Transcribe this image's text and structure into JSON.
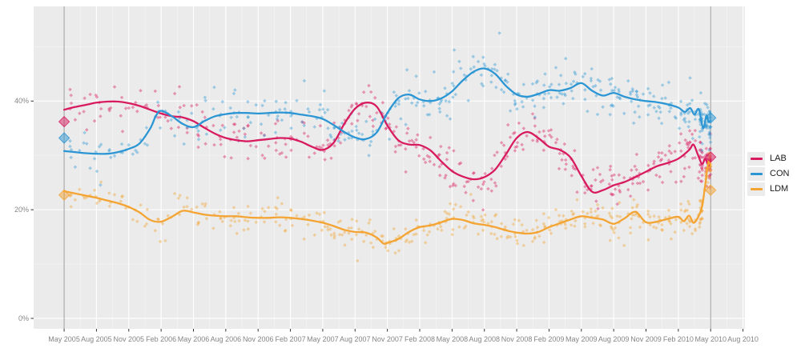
{
  "chart_data": {
    "type": "scatter-line",
    "title": "",
    "description": "UK voting-intention polls May 2005 - May 2010: semi-transparent poll points, smoothed trend lines per party, grey vertical lines and diamond markers at the 2005 and 2010 general elections",
    "x_unit": "months since May 2005",
    "xlim": [
      -2.83,
      63.18
    ],
    "ylim": [
      -1.92,
      57.42
    ],
    "panel_bg": "#ebebeb",
    "grid_major_color": "#ffffff",
    "grid_minor_color": "#ffffff",
    "election_line_color": "#9c9c9c",
    "tick_color": "#333333",
    "x_ticks": [
      {
        "t": 0,
        "label": "May 2005"
      },
      {
        "t": 3,
        "label": "Aug 2005"
      },
      {
        "t": 6,
        "label": "Nov 2005"
      },
      {
        "t": 9,
        "label": "Feb 2006"
      },
      {
        "t": 12,
        "label": "May 2006"
      },
      {
        "t": 15,
        "label": "Aug 2006"
      },
      {
        "t": 18,
        "label": "Nov 2006"
      },
      {
        "t": 21,
        "label": "Feb 2007"
      },
      {
        "t": 24,
        "label": "May 2007"
      },
      {
        "t": 27,
        "label": "Aug 2007"
      },
      {
        "t": 30,
        "label": "Nov 2007"
      },
      {
        "t": 33,
        "label": "Feb 2008"
      },
      {
        "t": 36,
        "label": "May 2008"
      },
      {
        "t": 39,
        "label": "Aug 2008"
      },
      {
        "t": 42,
        "label": "Nov 2008"
      },
      {
        "t": 45,
        "label": "Feb 2009"
      },
      {
        "t": 48,
        "label": "May 2009"
      },
      {
        "t": 51,
        "label": "Aug 2009"
      },
      {
        "t": 54,
        "label": "Nov 2009"
      },
      {
        "t": 57,
        "label": "Feb 2010"
      },
      {
        "t": 60,
        "label": "May 2010"
      },
      {
        "t": 63,
        "label": "Aug 2010"
      }
    ],
    "y_ticks": [
      {
        "v": 0,
        "label": "0%"
      },
      {
        "v": 20,
        "label": "20%"
      },
      {
        "v": 40,
        "label": "40%"
      }
    ],
    "y_minor": [
      10,
      30,
      50
    ],
    "election_lines_t": [
      0,
      60
    ],
    "series": [
      {
        "name": "LAB",
        "color": "#d81b5f",
        "points": [
          [
            0,
            38.4
          ],
          [
            1,
            38.9
          ],
          [
            2,
            39.3
          ],
          [
            3,
            39.7
          ],
          [
            4,
            39.9
          ],
          [
            5,
            39.9
          ],
          [
            6,
            39.6
          ],
          [
            7,
            39.1
          ],
          [
            8,
            38.4
          ],
          [
            9,
            37.7
          ],
          [
            10,
            37.2
          ],
          [
            11,
            37.0
          ],
          [
            12,
            36.3
          ],
          [
            13,
            35.1
          ],
          [
            14,
            34.0
          ],
          [
            15,
            33.2
          ],
          [
            16,
            32.8
          ],
          [
            17,
            32.6
          ],
          [
            18,
            32.8
          ],
          [
            19,
            33.0
          ],
          [
            20,
            33.2
          ],
          [
            21,
            33.1
          ],
          [
            22,
            32.5
          ],
          [
            23,
            31.6
          ],
          [
            24,
            31.0
          ],
          [
            25,
            32.3
          ],
          [
            26,
            35.8
          ],
          [
            27,
            38.6
          ],
          [
            28,
            39.7
          ],
          [
            29,
            39.0
          ],
          [
            30,
            35.5
          ],
          [
            31,
            32.8
          ],
          [
            32,
            32.0
          ],
          [
            33,
            31.9
          ],
          [
            34,
            30.9
          ],
          [
            35,
            28.9
          ],
          [
            36,
            27.1
          ],
          [
            37,
            26.1
          ],
          [
            38,
            25.6
          ],
          [
            39,
            26.0
          ],
          [
            40,
            27.4
          ],
          [
            41,
            30.2
          ],
          [
            42,
            33.2
          ],
          [
            43,
            34.3
          ],
          [
            44,
            33.2
          ],
          [
            45,
            31.6
          ],
          [
            46,
            31.0
          ],
          [
            47,
            29.6
          ],
          [
            48,
            26.2
          ],
          [
            49,
            23.3
          ],
          [
            50,
            23.6
          ],
          [
            51,
            24.5
          ],
          [
            52,
            25.1
          ],
          [
            53,
            26.0
          ],
          [
            54,
            27.0
          ],
          [
            55,
            28.0
          ],
          [
            56,
            28.6
          ],
          [
            57,
            29.4
          ],
          [
            58,
            31.0
          ],
          [
            58.4,
            32.0
          ],
          [
            58.8,
            30.2
          ],
          [
            59.2,
            28.4
          ],
          [
            59.5,
            29.4
          ],
          [
            59.8,
            28.1
          ],
          [
            60,
            29.2
          ]
        ]
      },
      {
        "name": "CON",
        "color": "#2b96d3",
        "points": [
          [
            0,
            30.8
          ],
          [
            1,
            30.6
          ],
          [
            2,
            30.4
          ],
          [
            3,
            30.3
          ],
          [
            4,
            30.3
          ],
          [
            5,
            30.6
          ],
          [
            6,
            31.2
          ],
          [
            7,
            32.2
          ],
          [
            8,
            35.0
          ],
          [
            8.5,
            37.2
          ],
          [
            9,
            38.2
          ],
          [
            10,
            37.2
          ],
          [
            11,
            35.8
          ],
          [
            12,
            35.2
          ],
          [
            13,
            36.3
          ],
          [
            14,
            37.2
          ],
          [
            15,
            37.6
          ],
          [
            16,
            37.8
          ],
          [
            17,
            37.8
          ],
          [
            18,
            37.7
          ],
          [
            19,
            37.8
          ],
          [
            20,
            37.9
          ],
          [
            21,
            37.8
          ],
          [
            22,
            37.5
          ],
          [
            23,
            37.2
          ],
          [
            24,
            36.7
          ],
          [
            25,
            35.6
          ],
          [
            26,
            34.3
          ],
          [
            27,
            33.3
          ],
          [
            28,
            33.0
          ],
          [
            29,
            34.2
          ],
          [
            30,
            37.8
          ],
          [
            31,
            40.5
          ],
          [
            32,
            41.2
          ],
          [
            33,
            40.3
          ],
          [
            34,
            40.0
          ],
          [
            35,
            40.5
          ],
          [
            36,
            41.8
          ],
          [
            37,
            43.8
          ],
          [
            38,
            45.4
          ],
          [
            39,
            46.0
          ],
          [
            40,
            45.0
          ],
          [
            41,
            42.8
          ],
          [
            42,
            41.2
          ],
          [
            43,
            40.8
          ],
          [
            44,
            41.3
          ],
          [
            45,
            42.0
          ],
          [
            46,
            41.9
          ],
          [
            47,
            42.4
          ],
          [
            48,
            43.3
          ],
          [
            49,
            41.9
          ],
          [
            50,
            41.0
          ],
          [
            51,
            41.5
          ],
          [
            52,
            40.8
          ],
          [
            53,
            40.3
          ],
          [
            54,
            40.0
          ],
          [
            55,
            39.8
          ],
          [
            56,
            39.4
          ],
          [
            57,
            38.8
          ],
          [
            57.6,
            38.0
          ],
          [
            58.1,
            38.7
          ],
          [
            58.5,
            37.5
          ],
          [
            58.9,
            38.5
          ],
          [
            59.3,
            35.0
          ],
          [
            59.6,
            37.3
          ],
          [
            59.8,
            36.2
          ],
          [
            60,
            36.4
          ]
        ]
      },
      {
        "name": "LDM",
        "color": "#f4a432",
        "points": [
          [
            0,
            23.4
          ],
          [
            1,
            23.0
          ],
          [
            2,
            22.6
          ],
          [
            3,
            22.2
          ],
          [
            4,
            21.7
          ],
          [
            5,
            21.2
          ],
          [
            6,
            20.5
          ],
          [
            7,
            19.5
          ],
          [
            8,
            18.1
          ],
          [
            9,
            17.8
          ],
          [
            10,
            18.7
          ],
          [
            11,
            19.8
          ],
          [
            12,
            19.5
          ],
          [
            13,
            19.1
          ],
          [
            14,
            18.9
          ],
          [
            15,
            18.8
          ],
          [
            16,
            18.8
          ],
          [
            17,
            18.6
          ],
          [
            18,
            18.5
          ],
          [
            19,
            18.5
          ],
          [
            20,
            18.6
          ],
          [
            21,
            18.5
          ],
          [
            22,
            18.3
          ],
          [
            23,
            18.0
          ],
          [
            24,
            17.6
          ],
          [
            25,
            17.0
          ],
          [
            26,
            16.3
          ],
          [
            27,
            15.9
          ],
          [
            28,
            15.8
          ],
          [
            29,
            14.9
          ],
          [
            29.6,
            13.8
          ],
          [
            30,
            13.9
          ],
          [
            31,
            14.6
          ],
          [
            32,
            15.9
          ],
          [
            33,
            16.8
          ],
          [
            34,
            17.1
          ],
          [
            35,
            17.7
          ],
          [
            36,
            18.3
          ],
          [
            37,
            18.1
          ],
          [
            38,
            17.5
          ],
          [
            39,
            17.2
          ],
          [
            40,
            16.8
          ],
          [
            41,
            16.2
          ],
          [
            42,
            15.8
          ],
          [
            43,
            15.6
          ],
          [
            44,
            15.9
          ],
          [
            45,
            16.8
          ],
          [
            46,
            17.5
          ],
          [
            47,
            18.2
          ],
          [
            48,
            18.8
          ],
          [
            49,
            18.5
          ],
          [
            50,
            18.2
          ],
          [
            51,
            17.4
          ],
          [
            52,
            18.4
          ],
          [
            53,
            19.6
          ],
          [
            54,
            17.7
          ],
          [
            55,
            17.8
          ],
          [
            56,
            18.3
          ],
          [
            57,
            18.7
          ],
          [
            57.5,
            17.9
          ],
          [
            58,
            18.9
          ],
          [
            58.4,
            17.6
          ],
          [
            58.8,
            18.5
          ],
          [
            59.2,
            20.6
          ],
          [
            59.5,
            24.6
          ],
          [
            59.8,
            28.8
          ],
          [
            60,
            28.0
          ]
        ]
      }
    ],
    "election_results": [
      {
        "t": 0,
        "LAB": 36.2,
        "CON": 33.2,
        "LDM": 22.7
      },
      {
        "t": 60,
        "LAB": 29.7,
        "CON": 36.9,
        "LDM": 23.6
      }
    ],
    "scatter": {
      "opacity": 0.42,
      "size": 3.2,
      "noise_sd": [
        2.0,
        2.0,
        1.5
      ],
      "polls_per_month_bands": [
        [
          0,
          12,
          4
        ],
        [
          12,
          24,
          5
        ],
        [
          24,
          36,
          7
        ],
        [
          36,
          48,
          7
        ],
        [
          48,
          57,
          8
        ],
        [
          57,
          59,
          12
        ],
        [
          59,
          60.2,
          40
        ]
      ],
      "extra_points": [
        {
          "s": 1,
          "t": 40.4,
          "v": 52.5
        },
        {
          "s": 1,
          "t": 36.2,
          "v": 49.4
        }
      ]
    }
  },
  "legend": {
    "items": [
      {
        "label": "LAB",
        "color": "#d81b5f"
      },
      {
        "label": "CON",
        "color": "#2b96d3"
      },
      {
        "label": "LDM",
        "color": "#f4a432"
      }
    ]
  }
}
